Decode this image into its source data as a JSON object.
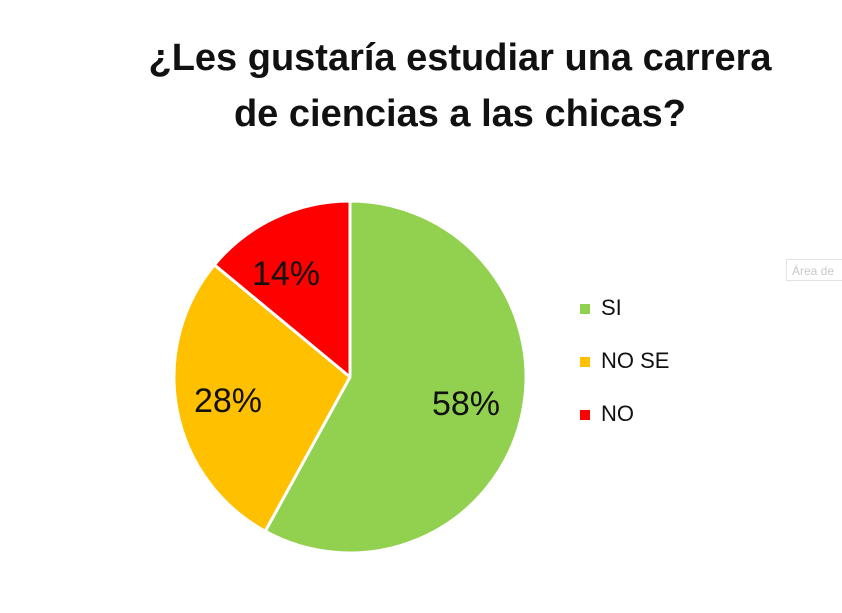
{
  "tooltip": "Área de",
  "chart_data": {
    "type": "pie",
    "title": "¿Les gustaría estudiar una carrera\nde  ciencias a las chicas?",
    "categories": [
      "SI",
      "NO SE",
      "NO"
    ],
    "values": [
      58,
      28,
      14
    ],
    "data_labels": [
      "58%",
      "28%",
      "14%"
    ],
    "colors": [
      "#92D050",
      "#FFC000",
      "#FF0000"
    ],
    "legend_position": "right"
  }
}
